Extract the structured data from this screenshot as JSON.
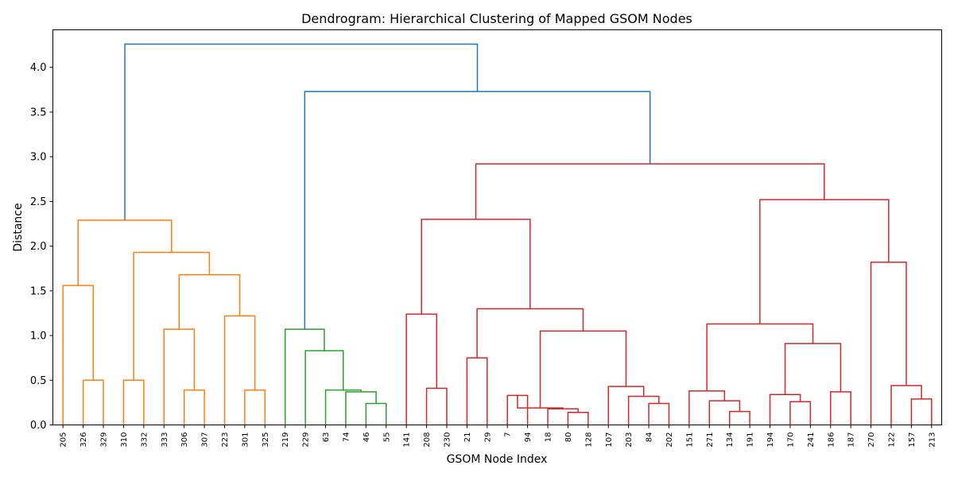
{
  "chart_data": {
    "type": "dendrogram",
    "title": "Dendrogram: Hierarchical Clustering of Mapped GSOM Nodes",
    "xlabel": "GSOM Node Index",
    "ylabel": "Distance",
    "ylim": [
      0,
      4.42
    ],
    "yticks": [
      "0.0",
      "0.5",
      "1.0",
      "1.5",
      "2.0",
      "2.5",
      "3.0",
      "3.5",
      "4.0"
    ],
    "leaves": [
      "205",
      "326",
      "329",
      "310",
      "332",
      "333",
      "306",
      "307",
      "223",
      "301",
      "325",
      "219",
      "229",
      "63",
      "74",
      "46",
      "55",
      "141",
      "208",
      "230",
      "21",
      "29",
      "7",
      "94",
      "18",
      "80",
      "128",
      "107",
      "203",
      "84",
      "202",
      "151",
      "271",
      "134",
      "191",
      "194",
      "170",
      "241",
      "186",
      "187",
      "270",
      "122",
      "157",
      "213"
    ],
    "colors": {
      "orange": "#ff7f0e",
      "green": "#2ca02c",
      "red": "#d62728",
      "blue": "#1f77b4"
    },
    "merges": [
      {
        "id": "o1",
        "a": "L1",
        "b": "L2",
        "h": 0.5,
        "color": "orange"
      },
      {
        "id": "o2",
        "a": "L0",
        "b": "o1",
        "h": 1.56,
        "color": "orange"
      },
      {
        "id": "o3",
        "a": "L3",
        "b": "L4",
        "h": 0.5,
        "color": "orange"
      },
      {
        "id": "o4",
        "a": "L6",
        "b": "L7",
        "h": 0.39,
        "color": "orange"
      },
      {
        "id": "o5",
        "a": "L5",
        "b": "o4",
        "h": 1.07,
        "color": "orange"
      },
      {
        "id": "o6",
        "a": "L9",
        "b": "L10",
        "h": 0.39,
        "color": "orange"
      },
      {
        "id": "o7",
        "a": "L8",
        "b": "o6",
        "h": 1.22,
        "color": "orange"
      },
      {
        "id": "o8",
        "a": "o5",
        "b": "o7",
        "h": 1.68,
        "color": "orange"
      },
      {
        "id": "o9",
        "a": "o3",
        "b": "o8",
        "h": 1.93,
        "color": "orange"
      },
      {
        "id": "o10",
        "a": "o2",
        "b": "o9",
        "h": 2.29,
        "color": "orange"
      },
      {
        "id": "g1",
        "a": "L15",
        "b": "L16",
        "h": 0.24,
        "color": "green"
      },
      {
        "id": "g2",
        "a": "L14",
        "b": "g1",
        "h": 0.37,
        "color": "green"
      },
      {
        "id": "g3",
        "a": "L13",
        "b": "g2",
        "h": 0.39,
        "color": "green"
      },
      {
        "id": "g4",
        "a": "L12",
        "b": "g3",
        "h": 0.83,
        "color": "green"
      },
      {
        "id": "g5",
        "a": "L11",
        "b": "g4",
        "h": 1.07,
        "color": "green"
      },
      {
        "id": "r1",
        "a": "L18",
        "b": "L19",
        "h": 0.41,
        "color": "red"
      },
      {
        "id": "r2",
        "a": "L17",
        "b": "r1",
        "h": 1.24,
        "color": "red"
      },
      {
        "id": "r3",
        "a": "L20",
        "b": "L21",
        "h": 0.75,
        "color": "red"
      },
      {
        "id": "r4",
        "a": "L22",
        "b": "L23",
        "h": 0.33,
        "color": "red"
      },
      {
        "id": "r5",
        "a": "L25",
        "b": "L26",
        "h": 0.14,
        "color": "red"
      },
      {
        "id": "r6",
        "a": "L24",
        "b": "r5",
        "h": 0.18,
        "color": "red"
      },
      {
        "id": "r6b",
        "a": "r4",
        "b": "r6",
        "h": 0.19,
        "color": "red"
      },
      {
        "id": "r8",
        "a": "L29",
        "b": "L30",
        "h": 0.24,
        "color": "red"
      },
      {
        "id": "r9",
        "a": "L28",
        "b": "r8",
        "h": 0.32,
        "color": "red"
      },
      {
        "id": "r10",
        "a": "L27",
        "b": "r9",
        "h": 0.43,
        "color": "red"
      },
      {
        "id": "r11",
        "a": "r6b",
        "b": "r10",
        "h": 1.05,
        "color": "red"
      },
      {
        "id": "r12",
        "a": "r3",
        "b": "r11",
        "h": 1.3,
        "color": "red"
      },
      {
        "id": "r13",
        "a": "r2",
        "b": "r12",
        "h": 2.3,
        "color": "red"
      },
      {
        "id": "r14",
        "a": "L33",
        "b": "L34",
        "h": 0.15,
        "color": "red"
      },
      {
        "id": "r15",
        "a": "L32",
        "b": "r14",
        "h": 0.27,
        "color": "red"
      },
      {
        "id": "r16",
        "a": "L31",
        "b": "r15",
        "h": 0.38,
        "color": "red"
      },
      {
        "id": "r17",
        "a": "L36",
        "b": "L37",
        "h": 0.26,
        "color": "red"
      },
      {
        "id": "r18",
        "a": "L35",
        "b": "r17",
        "h": 0.34,
        "color": "red"
      },
      {
        "id": "r19",
        "a": "L38",
        "b": "L39",
        "h": 0.37,
        "color": "red"
      },
      {
        "id": "r20",
        "a": "r18",
        "b": "r19",
        "h": 0.91,
        "color": "red"
      },
      {
        "id": "r21",
        "a": "r16",
        "b": "r20",
        "h": 1.13,
        "color": "red"
      },
      {
        "id": "r22",
        "a": "L42",
        "b": "L43",
        "h": 0.29,
        "color": "red"
      },
      {
        "id": "r23",
        "a": "L41",
        "b": "r22",
        "h": 0.44,
        "color": "red"
      },
      {
        "id": "r24",
        "a": "L40",
        "b": "r23",
        "h": 1.82,
        "color": "red"
      },
      {
        "id": "r25",
        "a": "r21",
        "b": "r24",
        "h": 2.52,
        "color": "red"
      },
      {
        "id": "r26",
        "a": "r13",
        "b": "r25",
        "h": 2.92,
        "color": "red"
      },
      {
        "id": "b1",
        "a": "g5",
        "b": "r26",
        "h": 3.73,
        "color": "blue"
      },
      {
        "id": "b2",
        "a": "o10",
        "b": "b1",
        "h": 4.26,
        "color": "blue"
      }
    ]
  }
}
